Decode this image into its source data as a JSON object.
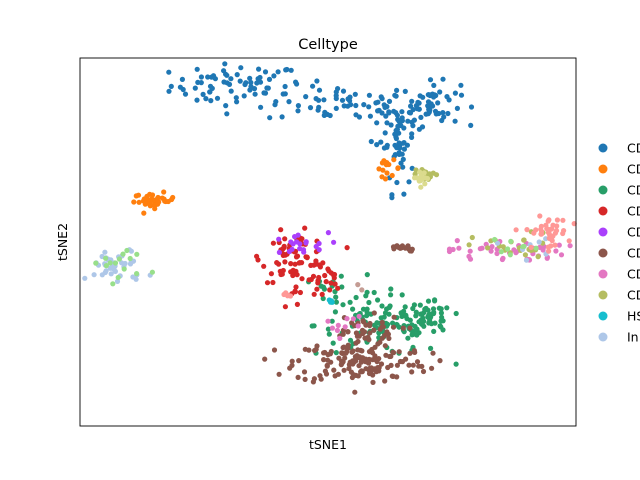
{
  "chart_data": {
    "type": "scatter",
    "title": "Celltype",
    "xlabel": "tSNE1",
    "ylabel": "tSNE2",
    "xlim": [
      -60,
      60
    ],
    "ylim": [
      -60,
      60
    ],
    "grid": false,
    "legend_placement": "right",
    "series": [
      {
        "name": "CD",
        "color": "#1f77b4",
        "clusters": [
          {
            "cx": -22,
            "cy": 51,
            "sx": 8,
            "sy": 3.5,
            "n": 70
          },
          {
            "cx": 3,
            "cy": 45,
            "sx": 9,
            "sy": 3,
            "n": 60
          },
          {
            "cx": 17,
            "cy": 37,
            "sx": 3,
            "sy": 5,
            "n": 45
          },
          {
            "cx": 17,
            "cy": 26,
            "sx": 1.5,
            "sy": 5,
            "n": 16
          },
          {
            "cx": 25,
            "cy": 45,
            "sx": 3.5,
            "sy": 3.5,
            "n": 55
          }
        ]
      },
      {
        "name": "CD",
        "color": "#ff7f0e",
        "clusters": [
          {
            "cx": -42,
            "cy": 13.5,
            "sx": 2.5,
            "sy": 1.2,
            "n": 38
          },
          {
            "cx": 14.5,
            "cy": 24,
            "sx": 1.5,
            "sy": 1.3,
            "n": 14
          }
        ]
      },
      {
        "name": "CD",
        "color": "#279e68",
        "clusters": [
          {
            "cx": 13,
            "cy": -27,
            "sx": 8,
            "sy": 5,
            "n": 120
          },
          {
            "cx": 25,
            "cy": -25,
            "sx": 2.5,
            "sy": 2.5,
            "n": 40
          },
          {
            "cx": 1,
            "cy": -15,
            "sx": 2,
            "sy": 2,
            "n": 12
          }
        ]
      },
      {
        "name": "CD",
        "color": "#d62728",
        "clusters": [
          {
            "cx": -8,
            "cy": -5,
            "sx": 4,
            "sy": 4,
            "n": 70
          },
          {
            "cx": -1,
            "cy": -12,
            "sx": 2,
            "sy": 3,
            "n": 20
          },
          {
            "cx": -8,
            "cy": -17,
            "sx": 1,
            "sy": 1.5,
            "n": 5
          }
        ]
      },
      {
        "name": "CD",
        "color": "#aa40fc",
        "clusters": [
          {
            "cx": -8,
            "cy": -1,
            "sx": 4,
            "sy": 2,
            "n": 20
          }
        ]
      },
      {
        "name": "CD",
        "color": "#8c564b",
        "clusters": [
          {
            "cx": 8,
            "cy": -39,
            "sx": 8,
            "sy": 3.5,
            "n": 150
          },
          {
            "cx": 8,
            "cy": -29,
            "sx": 5,
            "sy": 2.5,
            "n": 40
          },
          {
            "cx": 19,
            "cy": -2,
            "sx": 0.8,
            "sy": 0.5,
            "n": 10
          }
        ]
      },
      {
        "name": "CD",
        "color": "#e377c2",
        "clusters": [
          {
            "cx": 43,
            "cy": -3,
            "sx": 7,
            "sy": 1.8,
            "n": 40
          },
          {
            "cx": 4,
            "cy": -27,
            "sx": 2.5,
            "sy": 2,
            "n": 10
          }
        ]
      },
      {
        "name": "CD",
        "color": "#b5bd61",
        "clusters": [
          {
            "cx": 45,
            "cy": -2,
            "sx": 5,
            "sy": 2.5,
            "n": 25
          },
          {
            "cx": 24,
            "cy": 22,
            "sx": 1.3,
            "sy": 1,
            "n": 15
          }
        ]
      },
      {
        "name": "HS",
        "color": "#17becf",
        "clusters": [
          {
            "cx": 1,
            "cy": -19.5,
            "sx": 1,
            "sy": 0.3,
            "n": 5
          }
        ]
      },
      {
        "name": "In",
        "color": "#aec7e8",
        "clusters": [
          {
            "cx": -51,
            "cy": -8,
            "sx": 3.5,
            "sy": 3,
            "n": 40
          },
          {
            "cx": 46,
            "cy": -2,
            "sx": 4,
            "sy": 1.5,
            "n": 8
          }
        ]
      },
      {
        "name": "",
        "color": "#98df8a",
        "clusters": [
          {
            "cx": -50,
            "cy": -7,
            "sx": 3.5,
            "sy": 3,
            "n": 15
          },
          {
            "cx": 46,
            "cy": -1,
            "sx": 3,
            "sy": 1.5,
            "n": 8
          }
        ]
      },
      {
        "name": "",
        "color": "#ff9896",
        "clusters": [
          {
            "cx": 53,
            "cy": 3,
            "sx": 2.5,
            "sy": 2.5,
            "n": 40
          },
          {
            "cx": -10,
            "cy": -17,
            "sx": 1,
            "sy": 0.7,
            "n": 6
          }
        ]
      },
      {
        "name": "",
        "color": "#dbdb8d",
        "clusters": [
          {
            "cx": 23,
            "cy": 21,
            "sx": 1.2,
            "sy": 1,
            "n": 12
          }
        ]
      },
      {
        "name": "",
        "color": "#c49c94",
        "clusters": [
          {
            "cx": 8,
            "cy": -15,
            "sx": 0.5,
            "sy": 0.5,
            "n": 2
          }
        ]
      }
    ],
    "extra_clusters": [
      {
        "color": "#8c564b",
        "cx": 16.5,
        "cy": -2,
        "sx": 0.8,
        "sy": 0.5,
        "n": 8
      }
    ],
    "legend_entries": [
      {
        "label": "CD",
        "color": "#1f77b4"
      },
      {
        "label": "CD",
        "color": "#ff7f0e"
      },
      {
        "label": "CD",
        "color": "#279e68"
      },
      {
        "label": "CD",
        "color": "#d62728"
      },
      {
        "label": "CD",
        "color": "#aa40fc"
      },
      {
        "label": "CD",
        "color": "#8c564b"
      },
      {
        "label": "CD",
        "color": "#e377c2"
      },
      {
        "label": "CD",
        "color": "#b5bd61"
      },
      {
        "label": "HS",
        "color": "#17becf"
      },
      {
        "label": "In",
        "color": "#aec7e8"
      }
    ]
  }
}
